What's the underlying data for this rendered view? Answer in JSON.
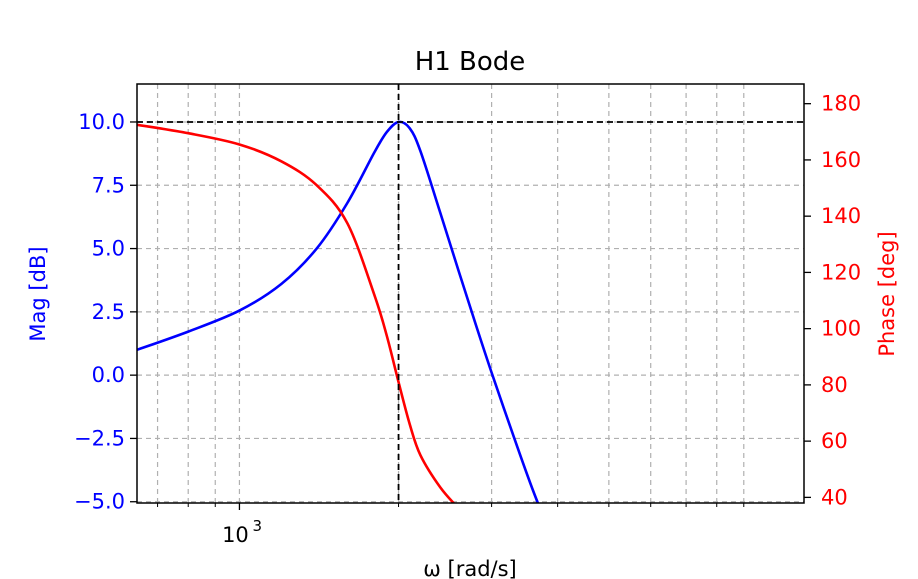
{
  "chart_data": {
    "type": "line",
    "title": "H1 Bode",
    "xlabel": "ω [rad/s]",
    "ylabel_left": "Mag [dB]",
    "ylabel_right": "Phase [deg]",
    "x_scale": "log",
    "xlim": [
      640,
      11700
    ],
    "x_major_tick_labels": [
      {
        "value": 1000,
        "label": "10",
        "exponent": "3"
      }
    ],
    "x_minor_ticks": [
      700,
      800,
      900,
      2000,
      3000,
      4000,
      5000,
      6000,
      7000,
      8000,
      9000
    ],
    "ylim_left": [
      -5.05,
      11.5
    ],
    "yticks_left": [
      {
        "value": 10.0,
        "label": "10.0"
      },
      {
        "value": 7.5,
        "label": "7.5"
      },
      {
        "value": 5.0,
        "label": "5.0"
      },
      {
        "value": 2.5,
        "label": "2.5"
      },
      {
        "value": 0.0,
        "label": "0.0"
      },
      {
        "value": -2.5,
        "label": "−2.5"
      },
      {
        "value": -5.0,
        "label": "−5.0"
      }
    ],
    "ylim_right": [
      38,
      187
    ],
    "yticks_right": [
      {
        "value": 180,
        "label": "180"
      },
      {
        "value": 160,
        "label": "160"
      },
      {
        "value": 140,
        "label": "140"
      },
      {
        "value": 120,
        "label": "120"
      },
      {
        "value": 100,
        "label": "100"
      },
      {
        "value": 80,
        "label": "80"
      },
      {
        "value": 60,
        "label": "60"
      },
      {
        "value": 40,
        "label": "40"
      }
    ],
    "grid": true,
    "series": [
      {
        "axis": "left",
        "color": "#0000ff",
        "x": [
          640,
          800,
          1000,
          1200,
          1400,
          1600,
          1800,
          1900,
          2000,
          2100,
          2200,
          2400,
          2600,
          2800,
          3000,
          3300,
          3600,
          4000
        ],
        "y": [
          1.0,
          1.72,
          2.55,
          3.6,
          5.0,
          6.8,
          8.8,
          9.6,
          10.0,
          9.75,
          8.85,
          6.4,
          4.1,
          2.0,
          0.1,
          -2.4,
          -4.6,
          -7.0
        ]
      },
      {
        "axis": "right",
        "color": "#ff0000",
        "x": [
          640,
          800,
          1000,
          1200,
          1400,
          1600,
          1800,
          1900,
          2000,
          2100,
          2200,
          2400,
          2600
        ],
        "y": [
          172.5,
          169.5,
          165.5,
          159.5,
          151.0,
          137.5,
          112.0,
          97.5,
          81.0,
          66.0,
          55.0,
          43.5,
          36.0
        ]
      }
    ],
    "reference_lines": [
      {
        "orientation": "vertical",
        "axis": "x",
        "value": 2000,
        "color": "#000000",
        "style": "dashed"
      },
      {
        "orientation": "horizontal",
        "axis": "left",
        "value": 10.0,
        "color": "#000000",
        "style": "dashed"
      }
    ]
  }
}
